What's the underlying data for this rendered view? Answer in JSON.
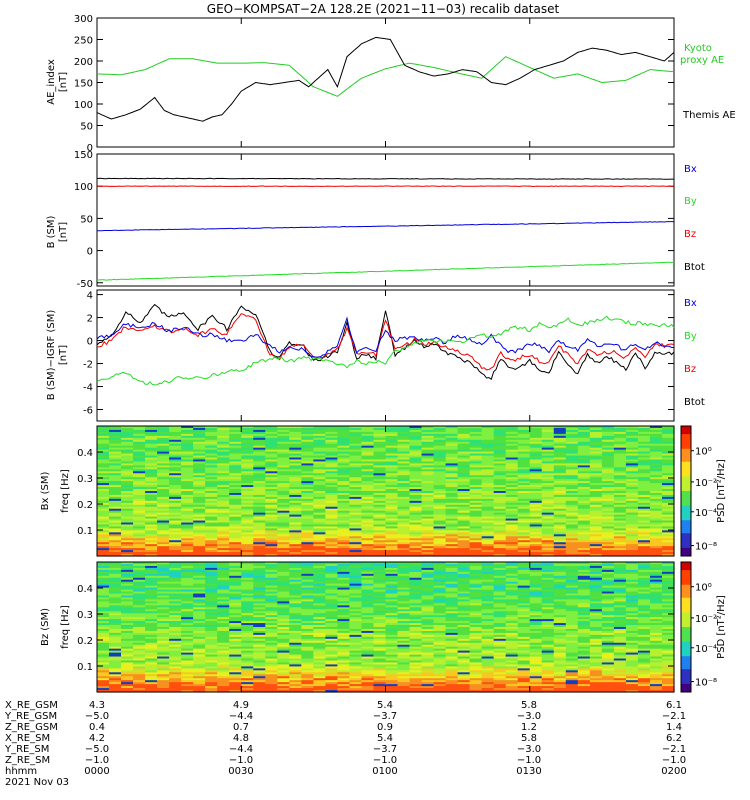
{
  "title": "GEO−KOMPSAT−2A 128.2E (2021−11−03) recalib dataset",
  "colors": {
    "black": "#000000",
    "blue": "#0000dd",
    "red": "#ee0000",
    "green": "#22dd22",
    "kyoto": "#22cc22"
  },
  "chart_data": [
    {
      "type": "line",
      "name": "ae",
      "ylabel": "AE_index",
      "yunit": "[nT]",
      "ylim": [
        0,
        300
      ],
      "yticks": [
        0,
        50,
        100,
        150,
        200,
        250,
        300
      ],
      "xlim": [
        0,
        120
      ],
      "series": [
        {
          "name": "Kyoto proxy AE",
          "color": "#22cc22",
          "x": [
            0,
            5,
            10,
            15,
            20,
            25,
            30,
            35,
            40,
            45,
            50,
            55,
            60,
            65,
            70,
            75,
            80,
            85,
            90,
            95,
            100,
            105,
            110,
            115,
            120
          ],
          "y": [
            170,
            168,
            180,
            205,
            205,
            195,
            195,
            196,
            190,
            140,
            118,
            160,
            182,
            195,
            185,
            172,
            160,
            210,
            185,
            160,
            170,
            150,
            155,
            180,
            175
          ]
        },
        {
          "name": "Themis AE",
          "color": "#000000",
          "x": [
            0,
            3,
            6,
            9,
            12,
            14,
            16,
            18,
            20,
            22,
            24,
            26,
            28,
            30,
            33,
            36,
            39,
            42,
            44,
            46,
            48,
            50,
            52,
            55,
            58,
            61,
            64,
            67,
            70,
            73,
            76,
            79,
            82,
            85,
            88,
            91,
            94,
            97,
            100,
            103,
            106,
            109,
            112,
            115,
            118,
            120
          ],
          "y": [
            80,
            65,
            75,
            88,
            115,
            85,
            75,
            70,
            65,
            60,
            70,
            75,
            100,
            130,
            150,
            145,
            150,
            155,
            140,
            160,
            180,
            140,
            210,
            240,
            255,
            250,
            190,
            175,
            165,
            170,
            180,
            175,
            150,
            145,
            160,
            180,
            190,
            200,
            220,
            230,
            225,
            215,
            220,
            210,
            200,
            220
          ]
        }
      ],
      "legend": [
        "Kyoto",
        "proxy AE",
        "Themis AE"
      ]
    },
    {
      "type": "line",
      "name": "bsm",
      "ylabel": "B (SM)",
      "yunit": "[nT]",
      "ylim": [
        -55,
        150
      ],
      "yticks": [
        -50,
        0,
        50,
        100,
        150
      ],
      "xlim": [
        0,
        120
      ],
      "series": [
        {
          "name": "Btot",
          "color": "#000000",
          "x": [
            0,
            120
          ],
          "y": [
            112,
            111
          ]
        },
        {
          "name": "Bz",
          "color": "#ee0000",
          "x": [
            0,
            120
          ],
          "y": [
            100,
            100
          ]
        },
        {
          "name": "Bx",
          "color": "#0000dd",
          "x": [
            0,
            120
          ],
          "y": [
            31,
            45
          ]
        },
        {
          "name": "By",
          "color": "#22dd22",
          "x": [
            0,
            120
          ],
          "y": [
            -46,
            -18
          ]
        }
      ],
      "legend": [
        "Bx",
        "By",
        "Bz",
        "Btot"
      ]
    },
    {
      "type": "line",
      "name": "dbsm",
      "ylabel": "B (SM)−IGRF (SM)",
      "yunit": "[nT]",
      "ylim": [
        -7,
        4.4
      ],
      "yticks": [
        -6,
        -4,
        -2,
        0,
        2,
        4
      ],
      "xlim": [
        0,
        120
      ],
      "series": [
        {
          "name": "Btot",
          "color": "#000000",
          "x": [
            0,
            3,
            6,
            9,
            12,
            15,
            18,
            21,
            24,
            27,
            30,
            33,
            36,
            38,
            40,
            43,
            45,
            47,
            50,
            52,
            54,
            56,
            58,
            60,
            62,
            64,
            66,
            68,
            70,
            72,
            75,
            78,
            80,
            82,
            84,
            86,
            88,
            90,
            92,
            94,
            96,
            98,
            100,
            102,
            104,
            106,
            108,
            110,
            112,
            114,
            116,
            118,
            120
          ],
          "y": [
            -0.3,
            0.4,
            2.5,
            1.5,
            3.0,
            2.0,
            2.5,
            1.0,
            2.2,
            1.0,
            3.0,
            2.3,
            -1.0,
            -1.5,
            -0.2,
            -0.5,
            -1.8,
            -1.5,
            -1.0,
            1.5,
            -1.5,
            -1.2,
            -1.5,
            2.6,
            -1.2,
            -0.7,
            0,
            -0.5,
            -0.3,
            -0.9,
            -1.5,
            -2.0,
            -3.0,
            -3.2,
            -1.5,
            -2.5,
            -2.3,
            -1.8,
            -2.5,
            -2.8,
            -1.0,
            -2.0,
            -3.0,
            -1.2,
            -2.0,
            -1.5,
            -1.8,
            -2.5,
            -1.0,
            -2.5,
            -1.0,
            -1.3,
            -1.0
          ]
        },
        {
          "name": "Bz",
          "color": "#ee0000",
          "x": [
            0,
            3,
            6,
            9,
            12,
            15,
            18,
            21,
            24,
            27,
            30,
            33,
            36,
            38,
            40,
            43,
            45,
            47,
            50,
            52,
            54,
            56,
            58,
            60,
            62,
            64,
            66,
            68,
            70,
            72,
            75,
            78,
            80,
            82,
            84,
            86,
            88,
            90,
            92,
            94,
            96,
            98,
            100,
            102,
            104,
            106,
            108,
            110,
            112,
            114,
            116,
            118,
            120
          ],
          "y": [
            -0.5,
            0,
            1.2,
            0.8,
            1.3,
            0.8,
            1.0,
            0.5,
            1.0,
            0.5,
            2.5,
            1.8,
            -1.2,
            -1.5,
            -0.5,
            -0.3,
            -1.5,
            -1.5,
            -0.8,
            1.0,
            -1.2,
            -1.0,
            -1.2,
            1.9,
            -0.8,
            -0.5,
            0.1,
            -0.3,
            -0.2,
            -0.5,
            -1.0,
            -1.5,
            -2.3,
            -2.5,
            -1.0,
            -1.8,
            -1.5,
            -1.2,
            -1.8,
            -2.0,
            -0.5,
            -1.2,
            -2.0,
            -0.8,
            -1.2,
            -1.0,
            -1.0,
            -1.5,
            -0.5,
            -1.5,
            -0.3,
            -0.5,
            -0.3
          ]
        },
        {
          "name": "Bx",
          "color": "#0000dd",
          "x": [
            0,
            3,
            6,
            9,
            12,
            15,
            18,
            21,
            24,
            27,
            30,
            33,
            36,
            38,
            40,
            43,
            45,
            47,
            50,
            52,
            54,
            56,
            58,
            60,
            62,
            64,
            66,
            68,
            70,
            72,
            75,
            78,
            80,
            82,
            84,
            86,
            88,
            90,
            92,
            94,
            96,
            98,
            100,
            102,
            104,
            106,
            108,
            110,
            112,
            114,
            116,
            118,
            120
          ],
          "y": [
            0.2,
            0.5,
            1.5,
            1.0,
            1.5,
            0.8,
            1.2,
            0.5,
            0.5,
            0,
            0,
            0.5,
            -0.5,
            -1.0,
            -0.5,
            -0.8,
            -1.5,
            -1.2,
            -0.5,
            1.8,
            -1.0,
            -0.5,
            -0.8,
            0.8,
            0,
            0.3,
            0.2,
            0,
            0.2,
            -0.2,
            0.5,
            0,
            -0.3,
            0.5,
            -0.5,
            -1.0,
            -0.8,
            -0.2,
            -0.5,
            -1.0,
            0,
            -0.5,
            -0.8,
            0.2,
            -0.5,
            -0.3,
            -0.5,
            -0.8,
            -0.2,
            -0.8,
            -0.2,
            -0.5,
            -0.5
          ]
        },
        {
          "name": "By",
          "color": "#22dd22",
          "x": [
            0,
            3,
            6,
            9,
            12,
            15,
            18,
            21,
            24,
            27,
            30,
            33,
            36,
            38,
            40,
            43,
            45,
            47,
            50,
            52,
            54,
            56,
            58,
            60,
            62,
            64,
            66,
            68,
            70,
            72,
            75,
            78,
            80,
            82,
            84,
            86,
            88,
            90,
            92,
            94,
            96,
            98,
            100,
            102,
            104,
            106,
            108,
            110,
            112,
            114,
            116,
            118,
            120
          ],
          "y": [
            -3.5,
            -3.2,
            -2.7,
            -3.7,
            -3.8,
            -3.5,
            -3.2,
            -3.3,
            -3.0,
            -2.8,
            -2.5,
            -2.0,
            -1.5,
            -1.5,
            -1.8,
            -1.5,
            -1.6,
            -1.7,
            -2.0,
            -2.2,
            -1.8,
            -2.0,
            -1.8,
            -2.0,
            -1.0,
            -0.5,
            -0.3,
            0,
            -0.1,
            0,
            -0.2,
            0.2,
            0.5,
            0.3,
            0.5,
            1.0,
            1.2,
            0.9,
            1.5,
            1.0,
            1.5,
            1.8,
            1.3,
            1.5,
            1.8,
            2.0,
            1.8,
            1.6,
            1.5,
            1.5,
            1.4,
            1.3,
            1.3
          ]
        }
      ],
      "legend": [
        "Bx",
        "By",
        "Bz",
        "Btot"
      ]
    },
    {
      "type": "heatmap",
      "name": "spec_bx",
      "ylabel": "Bx (SM)",
      "yunit": "freq [Hz]",
      "ylim": [
        0,
        0.5
      ],
      "yticks": [
        0.1,
        0.2,
        0.3,
        0.4
      ],
      "colorbar_label": "PSD [nT²/Hz]",
      "colorbar_ticks": [
        "10⁰",
        "10⁻²",
        "10⁻⁴",
        "10⁻⁸"
      ]
    },
    {
      "type": "heatmap",
      "name": "spec_bz",
      "ylabel": "Bz (SM)",
      "yunit": "freq [Hz]",
      "ylim": [
        0,
        0.5
      ],
      "yticks": [
        0.1,
        0.2,
        0.3,
        0.4
      ],
      "colorbar_label": "PSD [nT²/Hz]",
      "colorbar_ticks": [
        "10⁰",
        "10⁻²",
        "10⁻⁴",
        "10⁻⁸"
      ]
    }
  ],
  "orbit": {
    "labels": [
      "X_RE_GSM",
      "Y_RE_GSM",
      "Z_RE_GSM",
      "X_RE_SM",
      "Y_RE_SM",
      "Z_RE_SM",
      "hhmm",
      "2021 Nov 03"
    ],
    "columns": [
      [
        "4.3",
        "−5.0",
        "0.4",
        "4.2",
        "−5.0",
        "−1.0",
        "0000"
      ],
      [
        "4.9",
        "−4.4",
        "0.7",
        "4.8",
        "−4.4",
        "−1.0",
        "0030"
      ],
      [
        "5.4",
        "−3.7",
        "0.9",
        "5.4",
        "−3.7",
        "−1.0",
        "0100"
      ],
      [
        "5.8",
        "−3.0",
        "1.2",
        "5.8",
        "−3.0",
        "−1.0",
        "0130"
      ],
      [
        "6.1",
        "−2.1",
        "1.4",
        "6.2",
        "−2.1",
        "−1.0",
        "0200"
      ]
    ]
  }
}
